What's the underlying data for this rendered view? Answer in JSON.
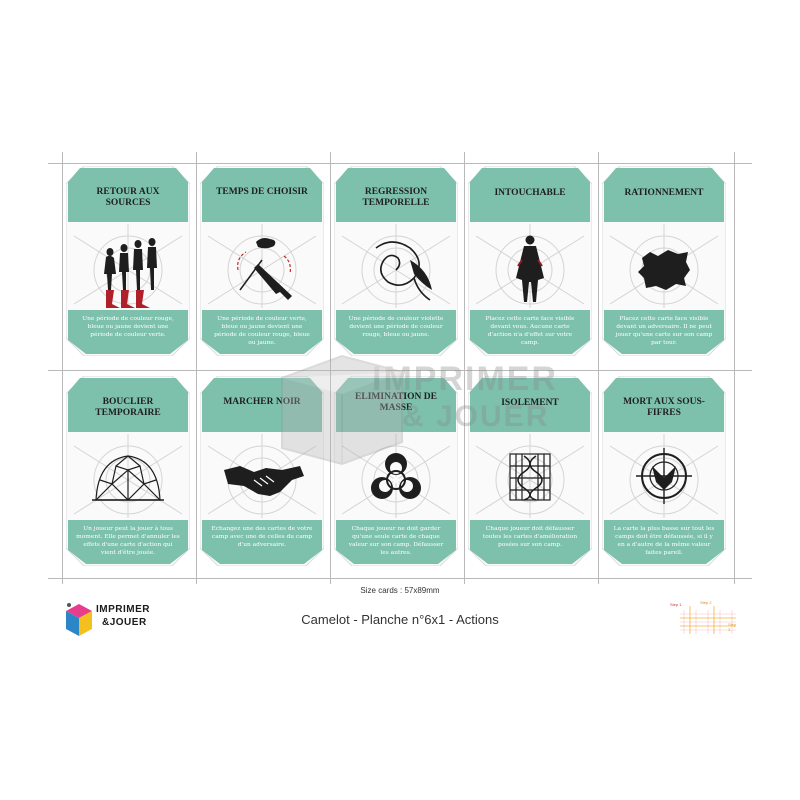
{
  "sheet": {
    "size_label": "Size cards : 57x89mm",
    "title": "Camelot - Planche n°6x1 - Actions",
    "accent_color": "#7dc0ac",
    "text_band_color": "#7dc0ac"
  },
  "logo": {
    "line1": "IMPRIMER",
    "line2": "&JOUER"
  },
  "watermark": {
    "line1": "IMPRIMER",
    "line2": "& JOUER"
  },
  "steps": {
    "step1": "Step 1",
    "step2": "Step 2",
    "step3": "Step 3"
  },
  "cards": [
    {
      "title": "RETOUR AUX SOURCES",
      "icon": "evolution-icon",
      "text": "Une période de couleur rouge, bleue ou jaune devient une période de couleur verte."
    },
    {
      "title": "TEMPS DE CHOISIR",
      "icon": "rifle-and-cloth-icon",
      "text": "Une période de couleur verte, bleue ou jaune devient une période de couleur rouge, bleue ou jaune."
    },
    {
      "title": "REGRESSION TEMPORELLE",
      "icon": "spiral-vortex-icon",
      "text": "Une période de couleur violette devient une période de couleur rouge, bleue ou jaune."
    },
    {
      "title": "INTOUCHABLE",
      "icon": "cloaked-figure-icon",
      "text": "Placez cette carte face visible devant vous. Aucune carte d'action n'a d'effet sur votre camp."
    },
    {
      "title": "RATIONNEMENT",
      "icon": "ration-ticket-icon",
      "text": "Placez cette carte face visible devant un adversaire. Il ne peut jouer qu'une carte sur son camp par tour."
    },
    {
      "title": "BOUCLIER TEMPORAIRE",
      "icon": "geodesic-dome-icon",
      "text": "Un joueur peut la jouer à tous moment. Elle permet d'annuler les effets d'une carte d'action qui vient d'être jouée."
    },
    {
      "title": "MARCHER NOIR",
      "icon": "handshake-icon",
      "text": "Echangez une des cartes de votre camp avec une de celles du camp d'un adversaire."
    },
    {
      "title": "ELIMINATION DE MASSE",
      "icon": "biohazard-icon",
      "text": "Chaque joueur ne doit garder qu'une seule carte de chaque valeur sur son camp. Défausser les autres."
    },
    {
      "title": "ISOLEMENT",
      "icon": "dna-cage-icon",
      "text": "Chaque joueur doit défausser toutes les cartes d'amélioration posées sur son camp."
    },
    {
      "title": "MORT AUX SOUS-FIFRES",
      "icon": "crosshair-target-icon",
      "text": "La carte la plus basse sur tout les camps doit être défaussée, si il y en a d'autre de la même valeur faites pareil."
    }
  ]
}
